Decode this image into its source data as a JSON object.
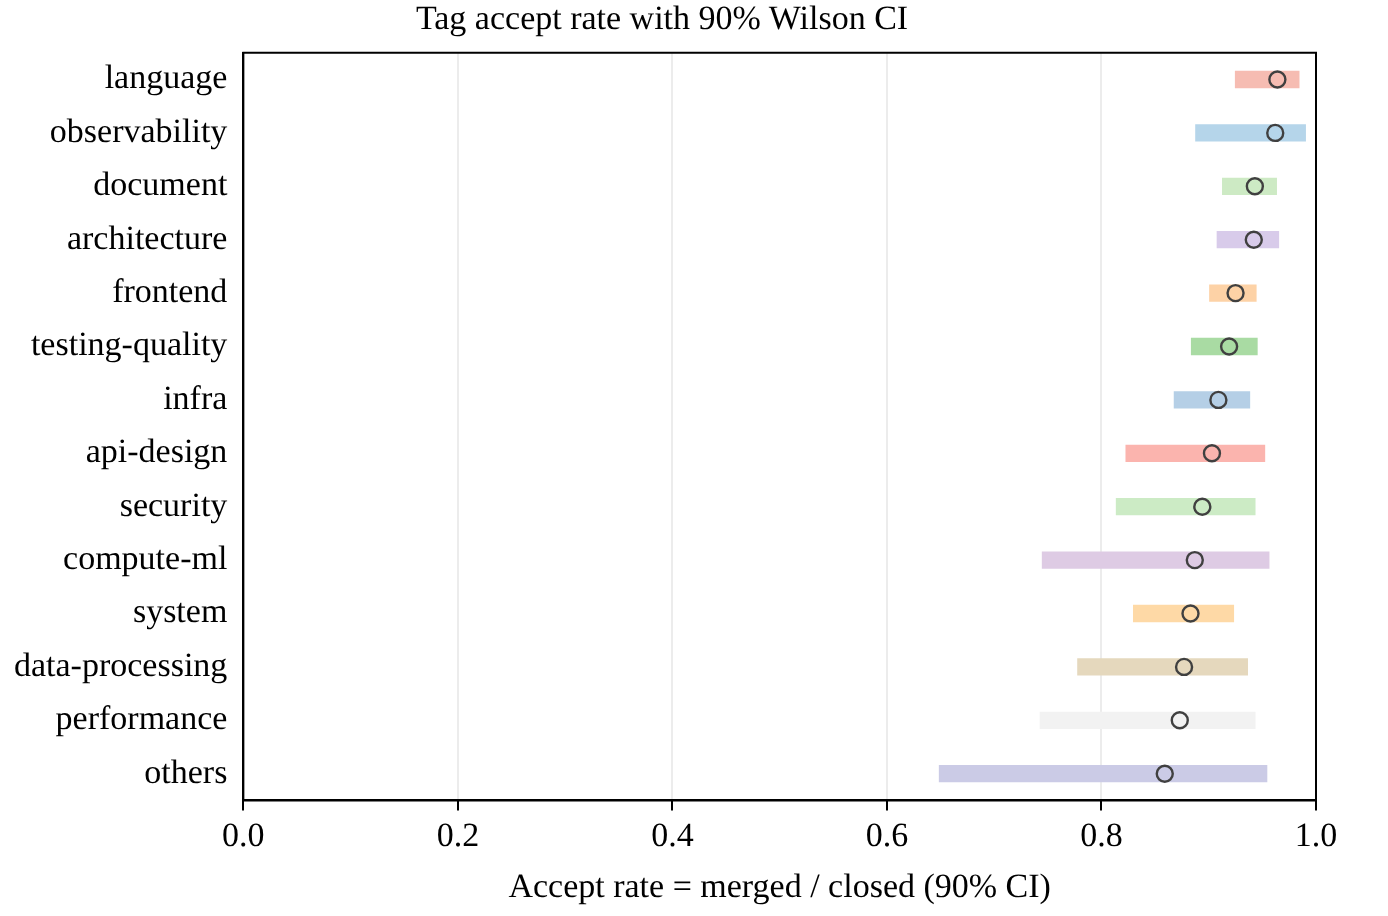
{
  "chart_data": {
    "type": "bar",
    "orientation": "horizontal",
    "title": "Tag accept rate with 90% Wilson CI",
    "xlabel": "Accept rate = merged / closed (90% CI)",
    "categories": [
      "language",
      "observability",
      "document",
      "architecture",
      "frontend",
      "testing-quality",
      "infra",
      "api-design",
      "security",
      "compute-ml",
      "system",
      "data-processing",
      "performance",
      "others"
    ],
    "series": [
      {
        "base": [
          0.925,
          0.888,
          0.913,
          0.908,
          0.901,
          0.884,
          0.868,
          0.823,
          0.814,
          0.745,
          0.83,
          0.778,
          0.743,
          0.649
        ],
        "values": [
          0.059,
          0.102,
          0.05,
          0.057,
          0.043,
          0.061,
          0.07,
          0.129,
          0.129,
          0.211,
          0.093,
          0.158,
          0.2,
          0.305
        ],
        "colors": [
          "#f6bcb2",
          "#b5d5ea",
          "#cdeac4",
          "#d8cbea",
          "#fdd2a6",
          "#a9dba3",
          "#b5cfe6",
          "#fbb4ae",
          "#ccebc5",
          "#decbe4",
          "#fed9a6",
          "#e5d8bd",
          "#f2f2f2",
          "#cbcbe6"
        ]
      },
      {
        "type": "scatter",
        "values": [
          0.964,
          0.962,
          0.943,
          0.942,
          0.925,
          0.919,
          0.909,
          0.903,
          0.894,
          0.887,
          0.883,
          0.877,
          0.873,
          0.859
        ],
        "color": "#404040"
      }
    ],
    "marker": "circle",
    "xlim": [
      0,
      1
    ],
    "xticks": [
      {
        "value": 0,
        "label": "0.0"
      },
      0.2,
      0.4,
      0.6,
      0.8,
      {
        "value": 1,
        "label": "1.0"
      }
    ],
    "grid": "x",
    "legend": false
  }
}
